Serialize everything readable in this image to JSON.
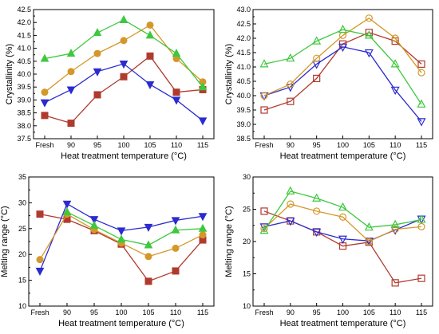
{
  "chart_data": [
    {
      "type": "line",
      "categories": [
        "Fresh",
        "90",
        "95",
        "100",
        "105",
        "110",
        "115"
      ],
      "xlabel": "Heat treatment temperature (°C)",
      "ylabel": "Crystallinity (%)",
      "ylim": [
        37.5,
        42.5
      ],
      "yticks": [
        "37.5",
        "38.0",
        "38.5",
        "39.0",
        "39.5",
        "40.0",
        "40.5",
        "41.0",
        "41.5",
        "42.0",
        "42.5"
      ],
      "marker_fill": "filled",
      "grid": false,
      "series": [
        {
          "color": "#b03a2e",
          "marker": "square",
          "values": [
            38.4,
            38.1,
            39.2,
            39.9,
            40.7,
            39.3,
            39.4
          ]
        },
        {
          "color": "#2b2bd0",
          "marker": "triangle-down",
          "values": [
            38.9,
            39.4,
            40.1,
            40.4,
            39.6,
            39.0,
            38.2
          ]
        },
        {
          "color": "#d4982a",
          "marker": "circle",
          "values": [
            39.3,
            40.1,
            40.8,
            41.3,
            41.9,
            40.6,
            39.7
          ]
        },
        {
          "color": "#3ec83e",
          "marker": "triangle-up",
          "values": [
            40.6,
            40.8,
            41.6,
            42.1,
            41.5,
            40.8,
            39.5
          ]
        }
      ]
    },
    {
      "type": "line",
      "categories": [
        "Fresh",
        "90",
        "95",
        "100",
        "105",
        "110",
        "115"
      ],
      "xlabel": "Heat treatment temperature (°C)",
      "ylabel": "Crystallinity (%)",
      "ylim": [
        38.5,
        43.0
      ],
      "yticks": [
        "38.5",
        "39.0",
        "39.5",
        "40.0",
        "40.5",
        "41.0",
        "41.5",
        "42.0",
        "42.5",
        "43.0"
      ],
      "marker_fill": "open",
      "grid": false,
      "series": [
        {
          "color": "#b03a2e",
          "marker": "square",
          "values": [
            39.5,
            39.8,
            40.6,
            41.8,
            42.2,
            41.9,
            41.1
          ]
        },
        {
          "color": "#2b2bd0",
          "marker": "triangle-down",
          "values": [
            40.0,
            40.3,
            41.1,
            41.7,
            41.5,
            40.2,
            39.1
          ]
        },
        {
          "color": "#d4982a",
          "marker": "circle",
          "values": [
            40.0,
            40.4,
            41.3,
            42.1,
            42.7,
            42.0,
            40.8
          ]
        },
        {
          "color": "#3ec83e",
          "marker": "triangle-up",
          "values": [
            41.1,
            41.3,
            41.9,
            42.3,
            42.1,
            41.1,
            39.7
          ]
        }
      ]
    },
    {
      "type": "line",
      "categories": [
        "Fresh",
        "90",
        "95",
        "100",
        "105",
        "110",
        "115"
      ],
      "xlabel": "Heat treatment temperature (°C)",
      "ylabel": "Melting range (°C)",
      "ylim": [
        10,
        35
      ],
      "yticks": [
        "10",
        "15",
        "20",
        "25",
        "30",
        "35"
      ],
      "marker_fill": "filled",
      "grid": false,
      "series": [
        {
          "color": "#b03a2e",
          "marker": "square",
          "values": [
            27.8,
            26.8,
            24.6,
            22.0,
            14.8,
            16.8,
            22.8
          ]
        },
        {
          "color": "#2b2bd0",
          "marker": "triangle-down",
          "values": [
            16.8,
            29.8,
            26.8,
            24.6,
            25.3,
            26.6,
            27.4
          ]
        },
        {
          "color": "#d4982a",
          "marker": "circle",
          "values": [
            19.0,
            27.8,
            24.8,
            22.2,
            19.6,
            21.2,
            23.8
          ]
        },
        {
          "color": "#3ec83e",
          "marker": "triangle-up",
          "values": [
            null,
            28.2,
            25.6,
            22.9,
            21.8,
            24.7,
            25.0
          ]
        }
      ]
    },
    {
      "type": "line",
      "categories": [
        "Fresh",
        "90",
        "95",
        "100",
        "105",
        "110",
        "115"
      ],
      "xlabel": "Heat treatment temperature (°C)",
      "ylabel": "Melting range (°C)",
      "ylim": [
        10,
        30
      ],
      "yticks": [
        "10",
        "15",
        "20",
        "25",
        "30"
      ],
      "marker_fill": "open",
      "grid": false,
      "series": [
        {
          "color": "#b03a2e",
          "marker": "square",
          "values": [
            24.7,
            23.2,
            21.5,
            19.3,
            19.9,
            13.6,
            14.3
          ]
        },
        {
          "color": "#2b2bd0",
          "marker": "triangle-down",
          "values": [
            22.3,
            23.2,
            21.5,
            20.4,
            20.1,
            21.8,
            23.5
          ]
        },
        {
          "color": "#d4982a",
          "marker": "circle",
          "values": [
            22.0,
            25.8,
            24.7,
            23.8,
            20.0,
            21.9,
            22.3
          ]
        },
        {
          "color": "#3ec83e",
          "marker": "triangle-up",
          "values": [
            21.7,
            27.8,
            26.7,
            25.3,
            22.2,
            22.6,
            23.4
          ]
        }
      ]
    }
  ]
}
